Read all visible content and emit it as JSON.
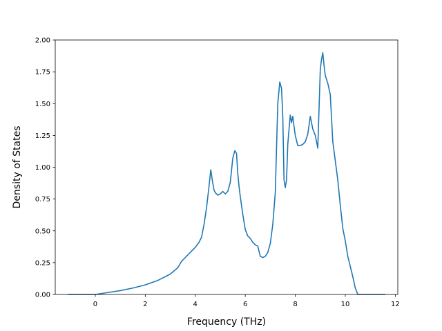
{
  "chart_data": {
    "type": "line",
    "title": "",
    "xlabel": "Frequency (THz)",
    "ylabel": "Density of States",
    "xlim": [
      -1.6,
      12.1
    ],
    "ylim": [
      0,
      2.0
    ],
    "xticks": [
      0,
      2,
      4,
      6,
      8,
      10,
      12
    ],
    "yticks": [
      0.0,
      0.25,
      0.5,
      0.75,
      1.0,
      1.25,
      1.5,
      1.75,
      2.0
    ],
    "xtick_labels": [
      "0",
      "2",
      "4",
      "6",
      "8",
      "10",
      "12"
    ],
    "ytick_labels": [
      "0.00",
      "0.25",
      "0.50",
      "0.75",
      "1.00",
      "1.25",
      "1.50",
      "1.75",
      "2.00"
    ],
    "grid": false,
    "line_color": "#1f77b4",
    "series": [
      {
        "x": [
          -1.1,
          -0.5,
          0.0,
          0.5,
          1.0,
          1.5,
          2.0,
          2.5,
          3.0,
          3.3,
          3.45,
          3.6,
          3.8,
          4.0,
          4.15,
          4.25,
          4.35,
          4.45,
          4.55,
          4.62,
          4.68,
          4.75,
          4.8,
          4.9,
          5.0,
          5.1,
          5.2,
          5.3,
          5.4,
          5.5,
          5.58,
          5.65,
          5.7,
          5.75,
          5.8,
          5.9,
          6.0,
          6.1,
          6.2,
          6.3,
          6.4,
          6.5,
          6.6,
          6.7,
          6.8,
          6.9,
          7.0,
          7.1,
          7.2,
          7.3,
          7.38,
          7.45,
          7.5,
          7.55,
          7.6,
          7.65,
          7.7,
          7.75,
          7.8,
          7.85,
          7.9,
          7.95,
          8.0,
          8.1,
          8.2,
          8.3,
          8.4,
          8.5,
          8.6,
          8.7,
          8.8,
          8.9,
          9.0,
          9.05,
          9.1,
          9.15,
          9.2,
          9.3,
          9.4,
          9.5,
          9.6,
          9.7,
          9.8,
          9.9,
          10.0,
          10.1,
          10.2,
          10.3,
          10.4,
          10.5,
          11.6
        ],
        "y": [
          0.0,
          0.0,
          0.0,
          0.015,
          0.03,
          0.05,
          0.075,
          0.11,
          0.16,
          0.21,
          0.26,
          0.29,
          0.33,
          0.37,
          0.41,
          0.45,
          0.55,
          0.68,
          0.85,
          0.98,
          0.9,
          0.82,
          0.8,
          0.78,
          0.79,
          0.81,
          0.79,
          0.81,
          0.88,
          1.07,
          1.13,
          1.11,
          0.95,
          0.85,
          0.77,
          0.63,
          0.51,
          0.46,
          0.44,
          0.41,
          0.39,
          0.38,
          0.3,
          0.29,
          0.3,
          0.33,
          0.4,
          0.55,
          0.8,
          1.5,
          1.67,
          1.62,
          1.4,
          0.9,
          0.84,
          0.9,
          1.18,
          1.3,
          1.41,
          1.35,
          1.4,
          1.32,
          1.25,
          1.17,
          1.17,
          1.18,
          1.2,
          1.26,
          1.4,
          1.3,
          1.25,
          1.15,
          1.77,
          1.85,
          1.9,
          1.8,
          1.72,
          1.66,
          1.57,
          1.2,
          1.05,
          0.9,
          0.7,
          0.52,
          0.42,
          0.3,
          0.22,
          0.14,
          0.05,
          0.0,
          0.0
        ]
      }
    ]
  }
}
